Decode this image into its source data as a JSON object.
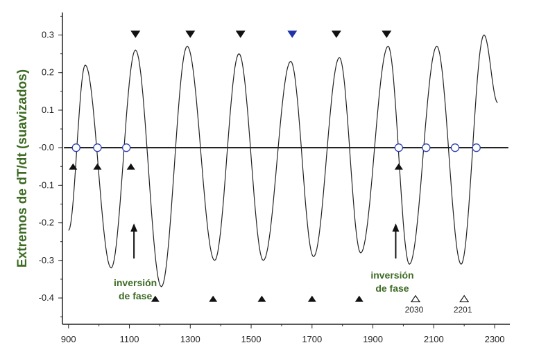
{
  "chart_data": {
    "type": "line",
    "title": "",
    "xlabel": "",
    "ylabel": "Extremos de dT/dt (suavizados)",
    "xlim": [
      880,
      2350
    ],
    "ylim": [
      -0.47,
      0.36
    ],
    "xticks": [
      900,
      1100,
      1300,
      1500,
      1700,
      1900,
      2100,
      2300
    ],
    "xtick_labels": [
      "900",
      "1100",
      "1300",
      "1500",
      "1700",
      "1900",
      "2100",
      "2300"
    ],
    "yticks": [
      0.3,
      0.2,
      0.1,
      0.0,
      -0.1,
      -0.2,
      -0.3,
      -0.4
    ],
    "ytick_labels": [
      "0.3",
      "0.2",
      "0.1",
      "-0.0",
      "-0.1",
      "-0.2",
      "-0.3",
      "-0.4"
    ],
    "grid": false,
    "series": [
      {
        "values": [
          {
            "x": 900,
            "y": -0.22
          },
          {
            "x": 955,
            "y": 0.22
          },
          {
            "x": 1040,
            "y": -0.32
          },
          {
            "x": 1120,
            "y": 0.26
          },
          {
            "x": 1205,
            "y": -0.37
          },
          {
            "x": 1290,
            "y": 0.27
          },
          {
            "x": 1380,
            "y": -0.3
          },
          {
            "x": 1460,
            "y": 0.25
          },
          {
            "x": 1540,
            "y": -0.3
          },
          {
            "x": 1630,
            "y": 0.23
          },
          {
            "x": 1705,
            "y": -0.29
          },
          {
            "x": 1790,
            "y": 0.24
          },
          {
            "x": 1860,
            "y": -0.28
          },
          {
            "x": 1950,
            "y": 0.27
          },
          {
            "x": 2020,
            "y": -0.31
          },
          {
            "x": 2110,
            "y": 0.27
          },
          {
            "x": 2190,
            "y": -0.31
          },
          {
            "x": 2265,
            "y": 0.3
          },
          {
            "x": 2310,
            "y": 0.12
          }
        ]
      }
    ],
    "zero_crossings": [
      925,
      995,
      1090,
      1985,
      2075,
      2170,
      2240
    ],
    "markers_top_down": [
      {
        "x": 1120,
        "color": "#111111"
      },
      {
        "x": 1300,
        "color": "#111111"
      },
      {
        "x": 1465,
        "color": "#111111"
      },
      {
        "x": 1635,
        "color": "#2233aa"
      },
      {
        "x": 1780,
        "color": "#111111"
      },
      {
        "x": 1945,
        "color": "#111111"
      }
    ],
    "markers_mid_up": [
      915,
      995,
      1105,
      1985
    ],
    "markers_bottom_up": [
      1185,
      1375,
      1535,
      1700,
      1855
    ],
    "markers_bottom_open": [
      {
        "x": 2040,
        "label": "2030"
      },
      {
        "x": 2200,
        "label": "2201"
      }
    ],
    "annotations": [
      {
        "text": [
          "inversión",
          "de fase"
        ],
        "arrow_x": 1115,
        "y_text": -0.35
      },
      {
        "text": [
          "inversión",
          "de fase"
        ],
        "arrow_x": 1975,
        "y_text": -0.33
      }
    ]
  }
}
